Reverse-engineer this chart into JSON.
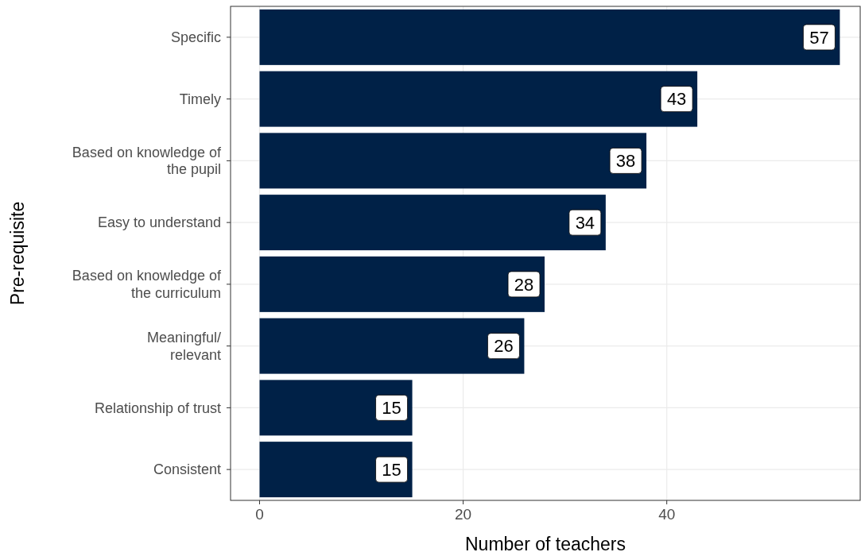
{
  "chart_data": {
    "type": "bar",
    "orientation": "horizontal",
    "xlabel": "Number of teachers",
    "ylabel": "Pre-requisite",
    "categories": [
      "Specific",
      "Timely",
      "Based on knowledge of\nthe pupil",
      "Easy to understand",
      "Based on knowledge of\nthe curriculum",
      "Meaningful/\nrelevant",
      "Relationship of trust",
      "Consistent"
    ],
    "values": [
      57,
      43,
      38,
      34,
      28,
      26,
      15,
      15
    ],
    "color": "#002147",
    "xlim": [
      -2.85,
      59
    ],
    "xticks": [
      0,
      20,
      40
    ],
    "grid": true,
    "data_labels": true
  }
}
